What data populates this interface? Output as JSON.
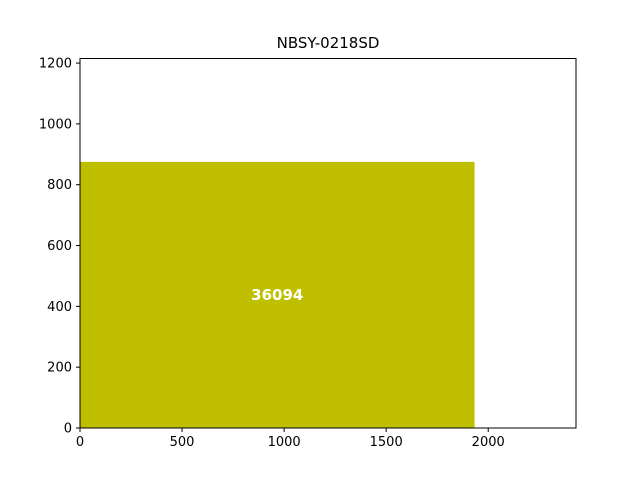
{
  "chart_data": {
    "type": "treemap",
    "title": "NBSY-0218SD",
    "xlim": [
      0,
      2430
    ],
    "ylim": [
      0,
      1215
    ],
    "x_ticks": [
      0,
      500,
      1000,
      1500,
      2000
    ],
    "y_ticks": [
      0,
      200,
      400,
      600,
      800,
      1000,
      1200
    ],
    "rectangles": [
      {
        "x0": 0,
        "y0": 0,
        "x1": 1933,
        "y1": 875,
        "label": "36094",
        "color": "#bfbf00"
      }
    ],
    "grid": false,
    "legend": "none"
  }
}
